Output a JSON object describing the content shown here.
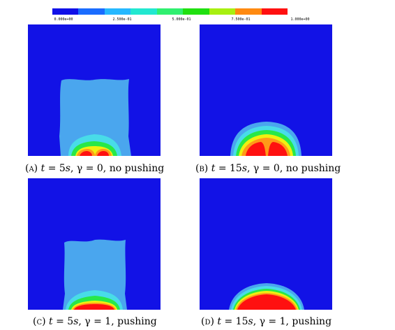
{
  "colorbar": {
    "colors": [
      "#1010e8",
      "#1a6cff",
      "#26b8ff",
      "#22e8d0",
      "#30f070",
      "#20e010",
      "#a8f010",
      "#ff8a10",
      "#ff1010"
    ],
    "ticks": [
      "0.000e+00",
      "2.500e-01",
      "5.000e-01",
      "7.500e-01",
      "1.000e+00"
    ]
  },
  "panels": [
    {
      "label": "(a)",
      "t_var": "t",
      "t_val": " = 5",
      "t_unit": "s",
      "gamma_text": ", γ = 0, no pushing"
    },
    {
      "label": "(b)",
      "t_var": "t",
      "t_val": " = 15",
      "t_unit": "s",
      "gamma_text": ", γ = 0, no pushing"
    },
    {
      "label": "(c)",
      "t_var": "t",
      "t_val": " = 5",
      "t_unit": "s",
      "gamma_text": ", γ = 1, pushing"
    },
    {
      "label": "(d)",
      "t_var": "t",
      "t_val": " = 15",
      "t_unit": "s",
      "gamma_text": ", γ = 1, pushing"
    }
  ],
  "colors": {
    "background": "#1212e6",
    "light_blue": "#4aa6ee",
    "cyan": "#48dce8",
    "green": "#28e848",
    "yellow": "#f0f010",
    "orange": "#ff9a18",
    "red": "#ff1010"
  }
}
